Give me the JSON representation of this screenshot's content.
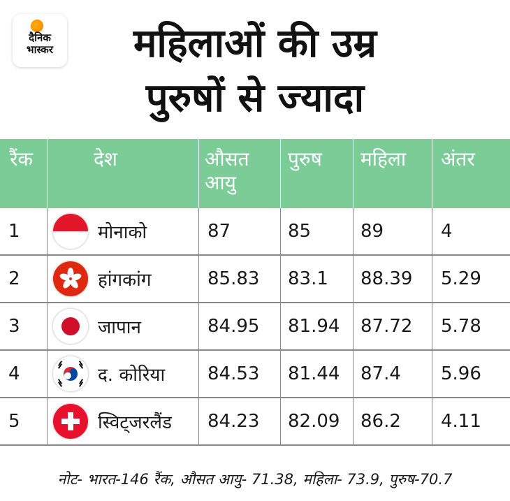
{
  "brand": {
    "line1": "दैनिक",
    "line2": "भास्कर"
  },
  "title": {
    "line1": "महिलाओं की उम्र",
    "line2": "पुरुषों से ज्यादा"
  },
  "chart_data": {
    "type": "table",
    "columns": [
      "रैंक",
      "देश",
      "औसत आयु",
      "पुरुष",
      "महिला",
      "अंतर"
    ],
    "rows": [
      {
        "rank": "1",
        "country": "मोनाको",
        "flag": "monaco-flag-icon",
        "avg": "87",
        "men": "85",
        "women": "89",
        "diff": "4"
      },
      {
        "rank": "2",
        "country": "हांगकांग",
        "flag": "hong-kong-flag-icon",
        "avg": "85.83",
        "men": "83.1",
        "women": "88.39",
        "diff": "5.29"
      },
      {
        "rank": "3",
        "country": "जापान",
        "flag": "japan-flag-icon",
        "avg": "84.95",
        "men": "81.94",
        "women": "87.72",
        "diff": "5.78"
      },
      {
        "rank": "4",
        "country": "द. कोरिया",
        "flag": "south-korea-flag-icon",
        "avg": "84.53",
        "men": "81.44",
        "women": "87.4",
        "diff": "5.96"
      },
      {
        "rank": "5",
        "country": "स्विट्जरलैंड",
        "flag": "switzerland-flag-icon",
        "avg": "84.23",
        "men": "82.09",
        "women": "86.2",
        "diff": "4.11"
      }
    ]
  },
  "note": "नोट-  भारत-146 रैंक,  औसत आयु- 71.38, महिला-  73.9, पुरुष-70.7",
  "colors": {
    "header_bg": "#7ccc98",
    "header_text": "#ffffff",
    "grid": "#888888"
  }
}
